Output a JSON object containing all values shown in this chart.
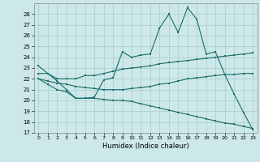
{
  "title": "",
  "xlabel": "Humidex (Indice chaleur)",
  "background_color": "#cce8e8",
  "grid_color": "#aacccc",
  "line_color": "#1a6b6b",
  "xlim": [
    -0.5,
    23.5
  ],
  "ylim": [
    17,
    29
  ],
  "yticks": [
    17,
    18,
    19,
    20,
    21,
    22,
    23,
    24,
    25,
    26,
    27,
    28
  ],
  "xticks": [
    0,
    1,
    2,
    3,
    4,
    5,
    6,
    7,
    8,
    9,
    10,
    11,
    12,
    13,
    14,
    15,
    16,
    17,
    18,
    19,
    20,
    21,
    22,
    23
  ],
  "line1_x": [
    0,
    1,
    2,
    3,
    4,
    5,
    6,
    7,
    8,
    9,
    10,
    11,
    12,
    13,
    14,
    15,
    16,
    17,
    18,
    19,
    20,
    21,
    22,
    23
  ],
  "line1_y": [
    23.2,
    22.5,
    21.8,
    21.0,
    20.2,
    20.2,
    20.3,
    21.9,
    22.1,
    24.5,
    24.0,
    24.2,
    24.3,
    26.7,
    28.0,
    26.3,
    28.6,
    27.5,
    24.3,
    24.5,
    22.4,
    20.6,
    18.9,
    17.3
  ],
  "line2_x": [
    0,
    1,
    2,
    3,
    4,
    5,
    6,
    7,
    8,
    9,
    10,
    11,
    12,
    13,
    14,
    15,
    16,
    17,
    18,
    19,
    20,
    21,
    22,
    23
  ],
  "line2_y": [
    22.5,
    22.5,
    22.0,
    22.0,
    22.0,
    22.3,
    22.3,
    22.5,
    22.7,
    22.9,
    23.0,
    23.1,
    23.2,
    23.4,
    23.5,
    23.6,
    23.7,
    23.8,
    23.9,
    24.0,
    24.1,
    24.2,
    24.3,
    24.4
  ],
  "line3_x": [
    0,
    1,
    2,
    3,
    4,
    5,
    6,
    7,
    8,
    9,
    10,
    11,
    12,
    13,
    14,
    15,
    16,
    17,
    18,
    19,
    20,
    21,
    22,
    23
  ],
  "line3_y": [
    22.0,
    21.8,
    21.6,
    21.5,
    21.3,
    21.2,
    21.1,
    21.0,
    21.0,
    21.0,
    21.1,
    21.2,
    21.3,
    21.5,
    21.6,
    21.8,
    22.0,
    22.1,
    22.2,
    22.3,
    22.4,
    22.4,
    22.5,
    22.5
  ],
  "line4_x": [
    0,
    1,
    2,
    3,
    4,
    5,
    6,
    7,
    8,
    9,
    10,
    11,
    12,
    13,
    14,
    15,
    16,
    17,
    18,
    19,
    20,
    21,
    22,
    23
  ],
  "line4_y": [
    22.0,
    21.5,
    21.0,
    20.8,
    20.2,
    20.2,
    20.2,
    20.1,
    20.0,
    20.0,
    19.9,
    19.7,
    19.5,
    19.3,
    19.1,
    18.9,
    18.7,
    18.5,
    18.3,
    18.1,
    17.9,
    17.8,
    17.6,
    17.4
  ]
}
